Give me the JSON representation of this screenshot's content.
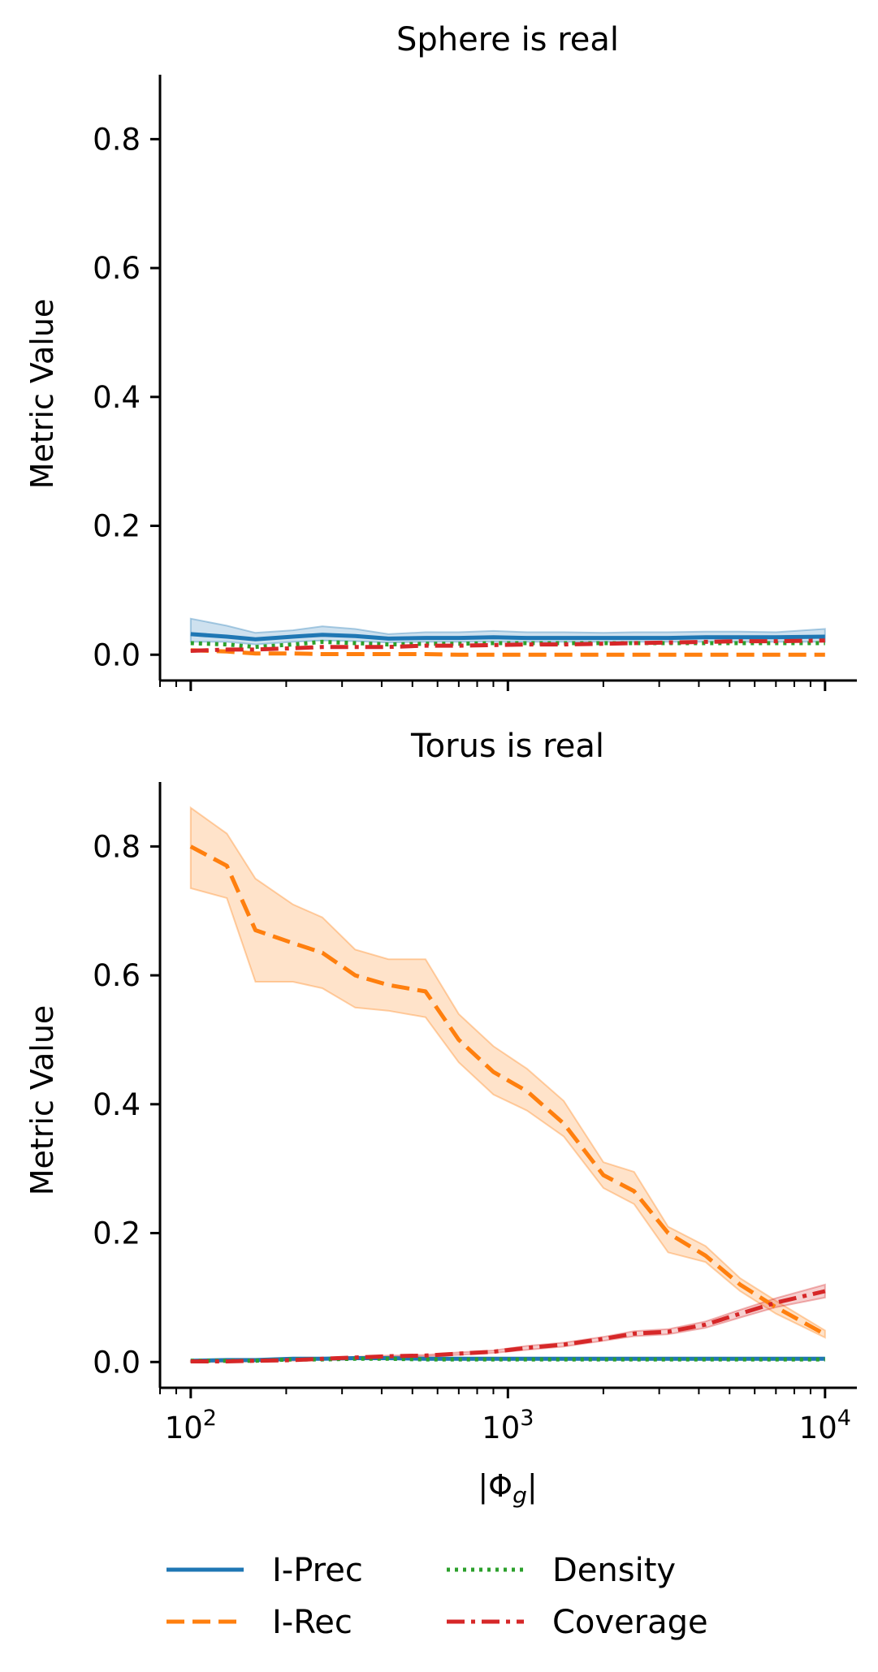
{
  "figure": {
    "xlabel": "|Φ_g|",
    "ylabel": "Metric Value"
  },
  "legend": {
    "placement": "bottom-center",
    "items": [
      {
        "label": "I-Prec",
        "color": "#1f77b4",
        "style": "solid"
      },
      {
        "label": "I-Rec",
        "color": "#ff7f0e",
        "style": "dashed"
      },
      {
        "label": "Density",
        "color": "#2ca02c",
        "style": "dotted"
      },
      {
        "label": "Coverage",
        "color": "#d62728",
        "style": "dashdot"
      }
    ]
  },
  "chart_data": [
    {
      "type": "line",
      "title": "Sphere is real",
      "xlabel": "",
      "ylabel": "Metric Value",
      "xscale": "log",
      "xlim": [
        80,
        12600
      ],
      "ylim": [
        -0.04,
        0.9
      ],
      "xticks": [
        100,
        1000,
        10000
      ],
      "yticks": [
        0.0,
        0.2,
        0.4,
        0.6,
        0.8
      ],
      "ytick_labels": [
        "0.0",
        "0.2",
        "0.4",
        "0.6",
        "0.8"
      ],
      "grid": false,
      "x": [
        100,
        130,
        160,
        210,
        260,
        330,
        420,
        550,
        700,
        900,
        1150,
        1500,
        2000,
        2500,
        3200,
        4200,
        5400,
        7000,
        10000
      ],
      "series": [
        {
          "name": "I-Prec",
          "color": "#1f77b4",
          "style": "solid",
          "values": [
            0.032,
            0.028,
            0.024,
            0.028,
            0.031,
            0.029,
            0.025,
            0.026,
            0.026,
            0.027,
            0.026,
            0.026,
            0.026,
            0.026,
            0.026,
            0.027,
            0.027,
            0.027,
            0.028
          ],
          "lower": [
            0.02,
            0.02,
            0.016,
            0.02,
            0.022,
            0.021,
            0.019,
            0.02,
            0.02,
            0.02,
            0.02,
            0.02,
            0.02,
            0.02,
            0.02,
            0.02,
            0.02,
            0.02,
            0.02
          ],
          "upper": [
            0.056,
            0.045,
            0.034,
            0.038,
            0.044,
            0.04,
            0.032,
            0.035,
            0.035,
            0.037,
            0.035,
            0.035,
            0.034,
            0.035,
            0.035,
            0.036,
            0.036,
            0.035,
            0.04
          ]
        },
        {
          "name": "I-Rec",
          "color": "#ff7f0e",
          "style": "dashed",
          "values": [
            0.007,
            0.005,
            0.002,
            0.002,
            0.001,
            0.001,
            0.001,
            0.001,
            0.0,
            0.0,
            0.0,
            0.0,
            0.0,
            0.0,
            0.0,
            0.0,
            0.0,
            0.0,
            0.0
          ],
          "lower": null,
          "upper": null
        },
        {
          "name": "Density",
          "color": "#2ca02c",
          "style": "dotted",
          "values": [
            0.018,
            0.016,
            0.012,
            0.016,
            0.02,
            0.018,
            0.016,
            0.017,
            0.017,
            0.018,
            0.018,
            0.018,
            0.018,
            0.018,
            0.018,
            0.018,
            0.018,
            0.018,
            0.018
          ],
          "lower": null,
          "upper": null
        },
        {
          "name": "Coverage",
          "color": "#d62728",
          "style": "dashdot",
          "values": [
            0.006,
            0.008,
            0.008,
            0.01,
            0.012,
            0.012,
            0.012,
            0.014,
            0.014,
            0.015,
            0.016,
            0.016,
            0.017,
            0.018,
            0.019,
            0.02,
            0.021,
            0.021,
            0.022
          ],
          "lower": null,
          "upper": null
        }
      ]
    },
    {
      "type": "line",
      "title": "Torus is real",
      "xlabel": "|Φ_g|",
      "ylabel": "Metric Value",
      "xscale": "log",
      "xlim": [
        80,
        12600
      ],
      "ylim": [
        -0.04,
        0.9
      ],
      "xticks": [
        100,
        1000,
        10000
      ],
      "yticks": [
        0.0,
        0.2,
        0.4,
        0.6,
        0.8
      ],
      "ytick_labels": [
        "0.0",
        "0.2",
        "0.4",
        "0.6",
        "0.8"
      ],
      "grid": false,
      "x": [
        100,
        130,
        160,
        210,
        260,
        330,
        420,
        550,
        700,
        900,
        1150,
        1500,
        2000,
        2500,
        3200,
        4200,
        5400,
        7000,
        10000
      ],
      "series": [
        {
          "name": "I-Prec",
          "color": "#1f77b4",
          "style": "solid",
          "values": [
            0.002,
            0.003,
            0.003,
            0.005,
            0.005,
            0.006,
            0.006,
            0.005,
            0.005,
            0.005,
            0.005,
            0.005,
            0.005,
            0.005,
            0.005,
            0.005,
            0.005,
            0.005,
            0.005
          ],
          "lower": null,
          "upper": null
        },
        {
          "name": "I-Rec",
          "color": "#ff7f0e",
          "style": "dashed",
          "values": [
            0.8,
            0.77,
            0.67,
            0.65,
            0.635,
            0.6,
            0.585,
            0.575,
            0.5,
            0.45,
            0.42,
            0.37,
            0.29,
            0.265,
            0.2,
            0.165,
            0.12,
            0.085,
            0.043
          ],
          "lower": [
            0.735,
            0.72,
            0.59,
            0.59,
            0.58,
            0.55,
            0.545,
            0.535,
            0.465,
            0.415,
            0.39,
            0.35,
            0.27,
            0.245,
            0.17,
            0.155,
            0.11,
            0.075,
            0.038
          ],
          "upper": [
            0.86,
            0.82,
            0.75,
            0.71,
            0.69,
            0.64,
            0.625,
            0.625,
            0.54,
            0.49,
            0.455,
            0.405,
            0.31,
            0.295,
            0.21,
            0.18,
            0.13,
            0.095,
            0.049
          ]
        },
        {
          "name": "Density",
          "color": "#2ca02c",
          "style": "dotted",
          "values": [
            0.002,
            0.002,
            0.002,
            0.004,
            0.004,
            0.005,
            0.005,
            0.004,
            0.004,
            0.004,
            0.004,
            0.004,
            0.004,
            0.004,
            0.004,
            0.004,
            0.004,
            0.004,
            0.004
          ],
          "lower": null,
          "upper": null
        },
        {
          "name": "Coverage",
          "color": "#d62728",
          "style": "dashdot",
          "values": [
            0.001,
            0.001,
            0.002,
            0.003,
            0.005,
            0.007,
            0.009,
            0.01,
            0.013,
            0.016,
            0.022,
            0.027,
            0.036,
            0.044,
            0.047,
            0.058,
            0.075,
            0.092,
            0.11
          ],
          "lower": [
            0.0,
            0.0,
            0.001,
            0.002,
            0.004,
            0.006,
            0.008,
            0.009,
            0.011,
            0.014,
            0.019,
            0.024,
            0.033,
            0.04,
            0.043,
            0.053,
            0.069,
            0.085,
            0.1
          ],
          "upper": [
            0.002,
            0.002,
            0.003,
            0.004,
            0.006,
            0.008,
            0.01,
            0.011,
            0.015,
            0.018,
            0.025,
            0.03,
            0.039,
            0.048,
            0.051,
            0.063,
            0.081,
            0.099,
            0.12
          ]
        }
      ]
    }
  ]
}
